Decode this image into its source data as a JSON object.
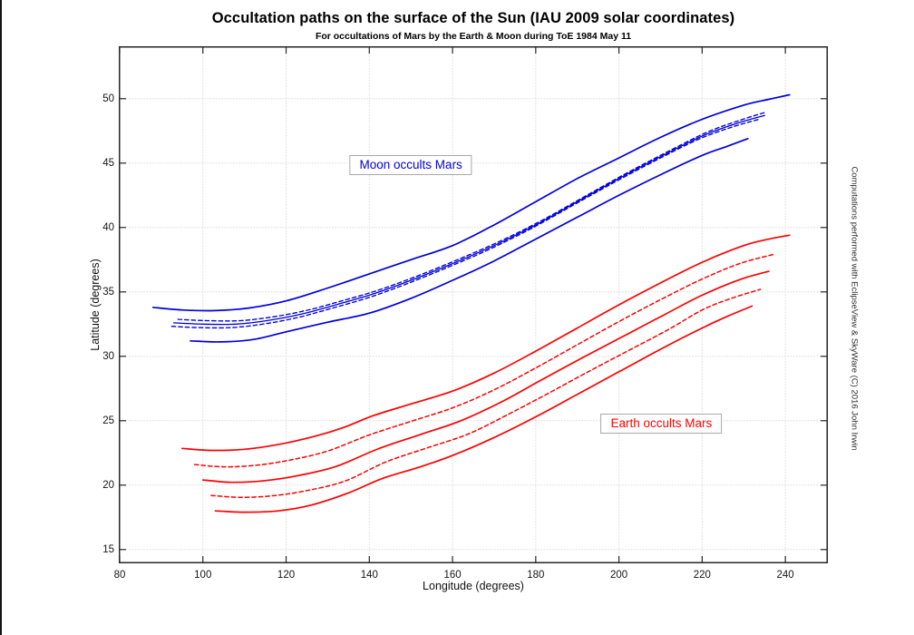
{
  "figure": {
    "credit": "Computations performed with EclipseView & SkyWare (C) 2016 John Irwin"
  },
  "chart_data": {
    "type": "line",
    "title": "Occultation paths on the surface of the Sun (IAU 2009 solar coordinates)",
    "subtitle": "For occultations of Mars by the Earth & Moon during ToE 1984 May 11",
    "xlabel": "Longitude (degrees)",
    "ylabel": "Latitude (degrees)",
    "xlim": [
      80,
      250
    ],
    "ylim": [
      14,
      54
    ],
    "xticks": [
      80,
      100,
      120,
      140,
      160,
      180,
      200,
      220,
      240
    ],
    "yticks": [
      15,
      20,
      25,
      30,
      35,
      40,
      45,
      50
    ],
    "grid": true,
    "grid_color": "#dcdcdc",
    "axis_color": "#262626",
    "colors": {
      "moon": "#0000DC",
      "earth": "#FF0000"
    },
    "annotations": [
      {
        "text": "Moon occults Mars",
        "color": "#0000DC",
        "x": 150.0,
        "y": 44.85
      },
      {
        "text": "Earth occults Mars",
        "color": "#FF0000",
        "x": 210.2,
        "y": 24.8
      }
    ],
    "series": [
      {
        "name": "moon-north-limit",
        "group": "Moon occults Mars",
        "color": "#0000DC",
        "style": "solid",
        "width": 1.7,
        "points": [
          [
            88,
            33.8
          ],
          [
            95,
            33.6
          ],
          [
            103,
            33.55
          ],
          [
            111,
            33.75
          ],
          [
            120,
            34.3
          ],
          [
            130,
            35.3
          ],
          [
            140,
            36.4
          ],
          [
            150,
            37.5
          ],
          [
            160,
            38.6
          ],
          [
            170,
            40.2
          ],
          [
            180,
            42.0
          ],
          [
            190,
            43.8
          ],
          [
            200,
            45.4
          ],
          [
            210,
            47.0
          ],
          [
            220,
            48.4
          ],
          [
            230,
            49.5
          ],
          [
            236,
            49.95
          ],
          [
            241,
            50.3
          ]
        ]
      },
      {
        "name": "moon-center-upper",
        "group": "Moon occults Mars",
        "color": "#0000DC",
        "style": "dashed",
        "width": 1.35,
        "points": [
          [
            94,
            32.87
          ],
          [
            101,
            32.77
          ],
          [
            109,
            32.77
          ],
          [
            117,
            33.07
          ],
          [
            125,
            33.57
          ],
          [
            133,
            34.27
          ],
          [
            142,
            35.12
          ],
          [
            151,
            36.17
          ],
          [
            161,
            37.47
          ],
          [
            171,
            38.87
          ],
          [
            181,
            40.47
          ],
          [
            191,
            42.27
          ],
          [
            201,
            44.07
          ],
          [
            211,
            45.77
          ],
          [
            221,
            47.37
          ],
          [
            229,
            48.32
          ],
          [
            235.5,
            48.97
          ]
        ]
      },
      {
        "name": "moon-center-line",
        "group": "Moon occults Mars",
        "color": "#0000DC",
        "style": "solid",
        "width": 1.3,
        "points": [
          [
            93,
            32.6
          ],
          [
            100,
            32.5
          ],
          [
            108,
            32.5
          ],
          [
            116,
            32.8
          ],
          [
            124,
            33.3
          ],
          [
            132,
            34.0
          ],
          [
            141,
            34.85
          ],
          [
            150,
            35.9
          ],
          [
            160,
            37.2
          ],
          [
            170,
            38.6
          ],
          [
            180,
            40.2
          ],
          [
            190,
            42.0
          ],
          [
            200,
            43.8
          ],
          [
            210,
            45.5
          ],
          [
            220,
            47.1
          ],
          [
            228,
            48.05
          ],
          [
            235,
            48.7
          ]
        ]
      },
      {
        "name": "moon-center-lower",
        "group": "Moon occults Mars",
        "color": "#0000DC",
        "style": "dashed",
        "width": 1.35,
        "points": [
          [
            92.5,
            32.33
          ],
          [
            99,
            32.23
          ],
          [
            107,
            32.23
          ],
          [
            115,
            32.53
          ],
          [
            123,
            33.03
          ],
          [
            131,
            33.73
          ],
          [
            140,
            34.58
          ],
          [
            149,
            35.63
          ],
          [
            159,
            36.93
          ],
          [
            169,
            38.33
          ],
          [
            179,
            39.93
          ],
          [
            189,
            41.73
          ],
          [
            199,
            43.53
          ],
          [
            209,
            45.23
          ],
          [
            219,
            46.83
          ],
          [
            227,
            47.78
          ],
          [
            234,
            48.43
          ]
        ]
      },
      {
        "name": "moon-south-limit",
        "group": "Moon occults Mars",
        "color": "#0000DC",
        "style": "solid",
        "width": 1.7,
        "points": [
          [
            97,
            31.2
          ],
          [
            104,
            31.12
          ],
          [
            112,
            31.3
          ],
          [
            120,
            31.9
          ],
          [
            130,
            32.65
          ],
          [
            140,
            33.35
          ],
          [
            150,
            34.5
          ],
          [
            160,
            35.9
          ],
          [
            170,
            37.4
          ],
          [
            180,
            39.1
          ],
          [
            190,
            40.8
          ],
          [
            200,
            42.5
          ],
          [
            210,
            44.1
          ],
          [
            220,
            45.6
          ],
          [
            226,
            46.3
          ],
          [
            231,
            46.9
          ]
        ]
      },
      {
        "name": "earth-north-limit",
        "group": "Earth occults Mars",
        "color": "#FF0000",
        "style": "solid",
        "width": 1.7,
        "points": [
          [
            95,
            22.85
          ],
          [
            102,
            22.7
          ],
          [
            110,
            22.78
          ],
          [
            118,
            23.15
          ],
          [
            127,
            23.8
          ],
          [
            134,
            24.5
          ],
          [
            141,
            25.4
          ],
          [
            150,
            26.3
          ],
          [
            160,
            27.3
          ],
          [
            170,
            28.7
          ],
          [
            180,
            30.4
          ],
          [
            190,
            32.2
          ],
          [
            200,
            34.0
          ],
          [
            210,
            35.7
          ],
          [
            220,
            37.3
          ],
          [
            230,
            38.6
          ],
          [
            236,
            39.1
          ],
          [
            241,
            39.4
          ]
        ]
      },
      {
        "name": "earth-upper-dashed",
        "group": "Earth occults Mars",
        "color": "#FF0000",
        "style": "dashed",
        "width": 1.5,
        "points": [
          [
            98,
            21.6
          ],
          [
            105,
            21.42
          ],
          [
            113,
            21.55
          ],
          [
            121,
            21.95
          ],
          [
            130,
            22.65
          ],
          [
            140,
            23.9
          ],
          [
            150,
            24.95
          ],
          [
            160,
            26.0
          ],
          [
            170,
            27.4
          ],
          [
            180,
            29.1
          ],
          [
            190,
            30.9
          ],
          [
            200,
            32.7
          ],
          [
            210,
            34.4
          ],
          [
            220,
            36.0
          ],
          [
            229,
            37.2
          ],
          [
            237,
            37.9
          ]
        ]
      },
      {
        "name": "earth-center-line",
        "group": "Earth occults Mars",
        "color": "#FF0000",
        "style": "solid",
        "width": 1.7,
        "points": [
          [
            100,
            20.4
          ],
          [
            107,
            20.22
          ],
          [
            115,
            20.35
          ],
          [
            123,
            20.75
          ],
          [
            132,
            21.45
          ],
          [
            142,
            22.8
          ],
          [
            152,
            23.9
          ],
          [
            162,
            25.0
          ],
          [
            172,
            26.5
          ],
          [
            181,
            28.1
          ],
          [
            191,
            29.85
          ],
          [
            201,
            31.55
          ],
          [
            211,
            33.25
          ],
          [
            220,
            34.75
          ],
          [
            229,
            35.95
          ],
          [
            236,
            36.6
          ]
        ]
      },
      {
        "name": "earth-lower-dashed",
        "group": "Earth occults Mars",
        "color": "#FF0000",
        "style": "dashed",
        "width": 1.5,
        "points": [
          [
            102,
            19.2
          ],
          [
            109,
            19.05
          ],
          [
            117,
            19.18
          ],
          [
            125,
            19.58
          ],
          [
            134,
            20.3
          ],
          [
            144,
            21.8
          ],
          [
            154,
            22.9
          ],
          [
            164,
            24.0
          ],
          [
            174,
            25.6
          ],
          [
            182,
            26.95
          ],
          [
            192,
            28.7
          ],
          [
            202,
            30.4
          ],
          [
            212,
            32.1
          ],
          [
            220,
            33.6
          ],
          [
            227,
            34.5
          ],
          [
            234,
            35.2
          ]
        ]
      },
      {
        "name": "earth-south-limit",
        "group": "Earth occults Mars",
        "color": "#FF0000",
        "style": "solid",
        "width": 1.7,
        "points": [
          [
            103,
            18.0
          ],
          [
            110,
            17.9
          ],
          [
            118,
            18.0
          ],
          [
            126,
            18.45
          ],
          [
            135,
            19.4
          ],
          [
            143,
            20.5
          ],
          [
            152,
            21.4
          ],
          [
            160,
            22.3
          ],
          [
            170,
            23.7
          ],
          [
            180,
            25.3
          ],
          [
            190,
            27.05
          ],
          [
            200,
            28.8
          ],
          [
            210,
            30.55
          ],
          [
            220,
            32.2
          ],
          [
            226,
            33.1
          ],
          [
            232,
            33.9
          ]
        ]
      }
    ]
  }
}
